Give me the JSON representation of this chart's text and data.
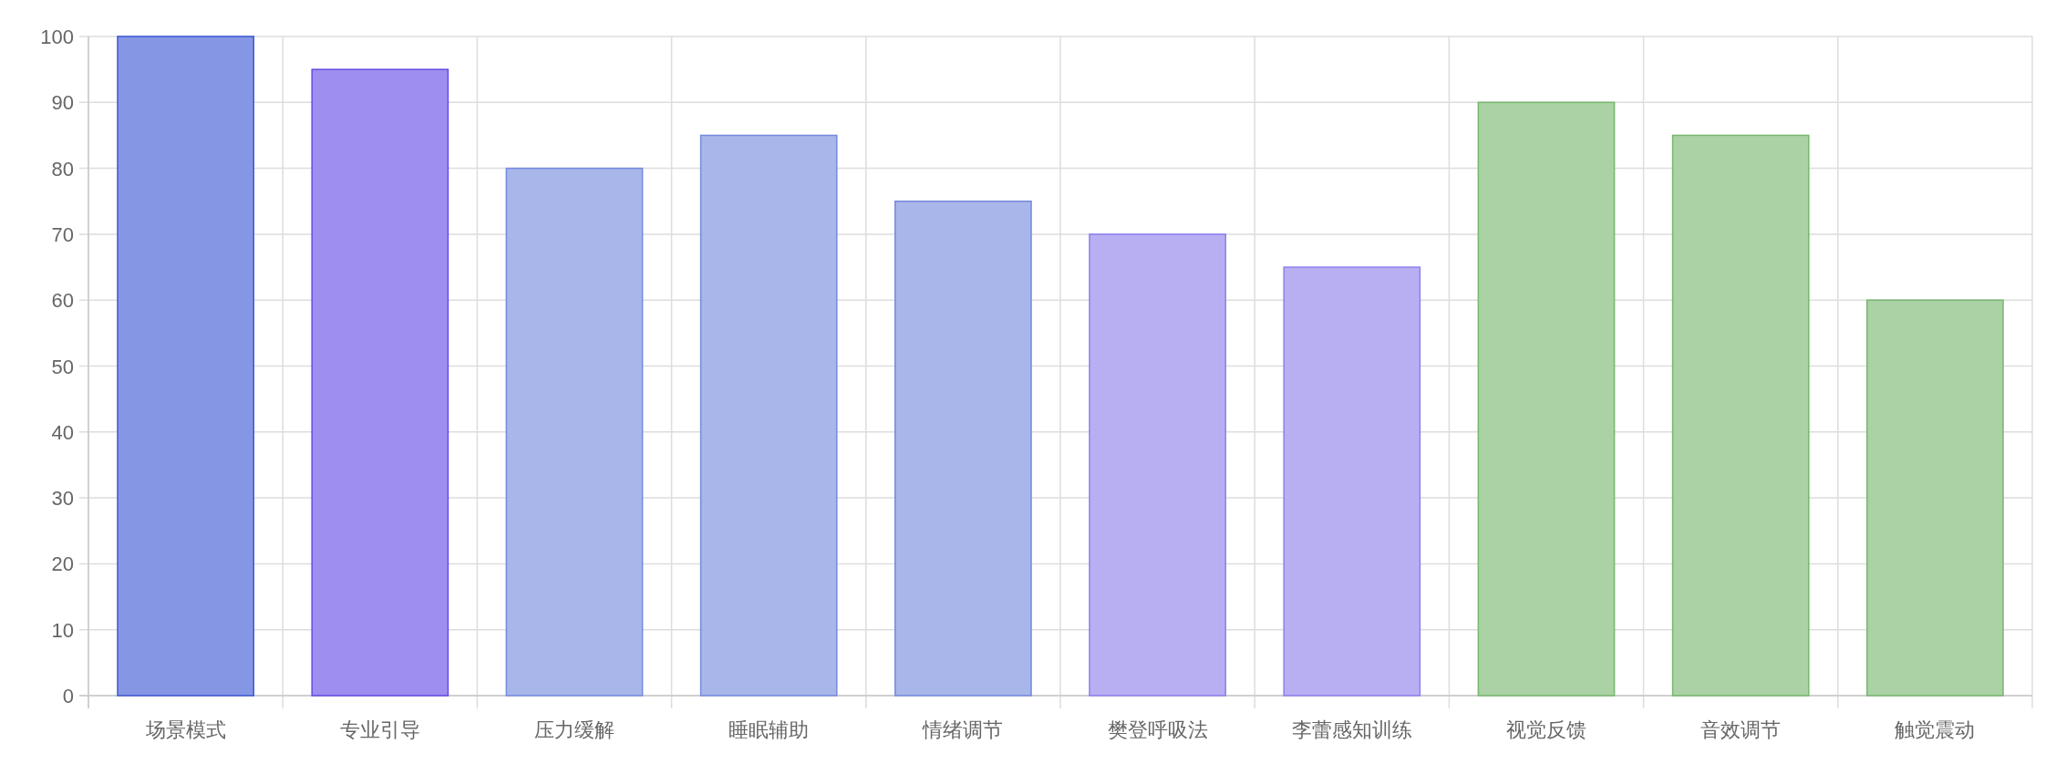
{
  "chart_data": {
    "type": "bar",
    "categories": [
      "场景模式",
      "专业引导",
      "压力缓解",
      "睡眠辅助",
      "情绪调节",
      "樊登呼吸法",
      "李蕾感知训练",
      "视觉反馈",
      "音效调节",
      "触觉震动"
    ],
    "values": [
      100,
      95,
      80,
      85,
      75,
      70,
      65,
      90,
      85,
      60
    ],
    "colors": [
      "#8597e4",
      "#9e8ef0",
      "#a8b6ea",
      "#a8b6ea",
      "#a8b6ea",
      "#b8aff3",
      "#b8aff3",
      "#aad2a5",
      "#aad2a5",
      "#aad2a5"
    ],
    "ylim": [
      0,
      100
    ],
    "yticks": [
      0,
      10,
      20,
      30,
      40,
      50,
      60,
      70,
      80,
      90,
      100
    ],
    "grid": true
  }
}
